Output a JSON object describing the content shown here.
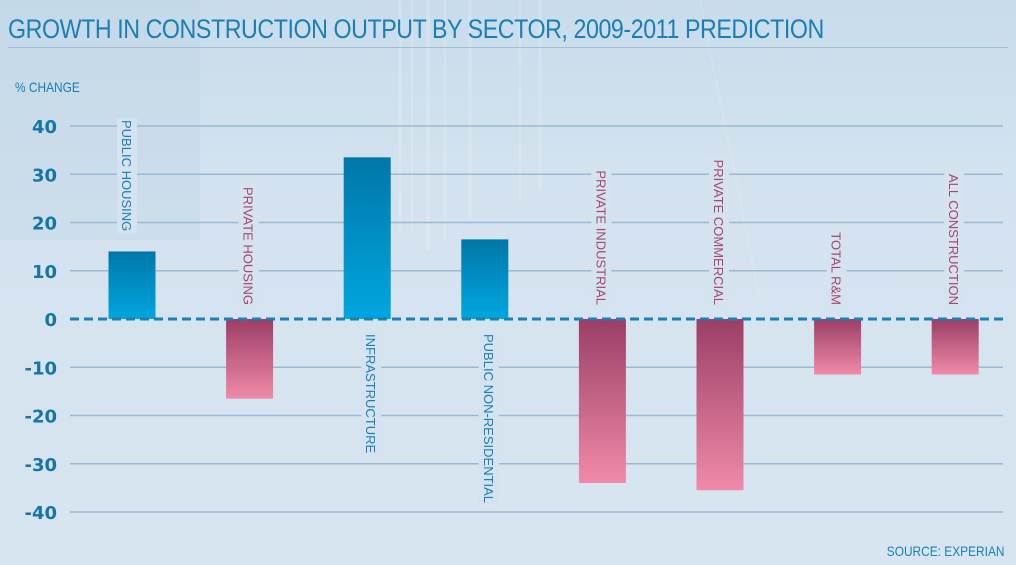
{
  "chart_data": {
    "type": "bar",
    "title": "GROWTH IN CONSTRUCTION OUTPUT BY SECTOR, 2009-2011 PREDICTION",
    "xlabel": "",
    "ylabel": "% CHANGE",
    "ylim": [
      -40,
      40
    ],
    "yticks": [
      40,
      30,
      20,
      10,
      0,
      -10,
      -20,
      -30,
      -40
    ],
    "ytick_labels": [
      "40",
      "30",
      "20",
      "10",
      "0",
      "-10",
      "-20",
      "-30",
      "-40"
    ],
    "grid": true,
    "zero_line": "dashed",
    "categories": [
      "PUBLIC HOUSING",
      "PRIVATE HOUSING",
      "INFRASTRUCTURE",
      "PUBLIC NON-RESIDENTIAL",
      "PRIVATE INDUSTRIAL",
      "PRIVATE COMMERCIAL",
      "TOTAL R&M",
      "ALL CONSTRUCTION"
    ],
    "values": [
      14,
      -16.5,
      33.5,
      16.5,
      -34,
      -35.5,
      -11.5,
      -11.5
    ],
    "source": "SOURCE: EXPERIAN",
    "colors": {
      "positive_top": "#0077a8",
      "positive_bottom": "#00a6e0",
      "negative_top": "#9b3e66",
      "negative_bottom": "#f08aa8",
      "positive_label": "#1a7fb4",
      "negative_label": "#a3476f",
      "axis_text": "#1575a8",
      "grid": "#9ab9d6",
      "zero_line": "#1a80b8"
    }
  }
}
